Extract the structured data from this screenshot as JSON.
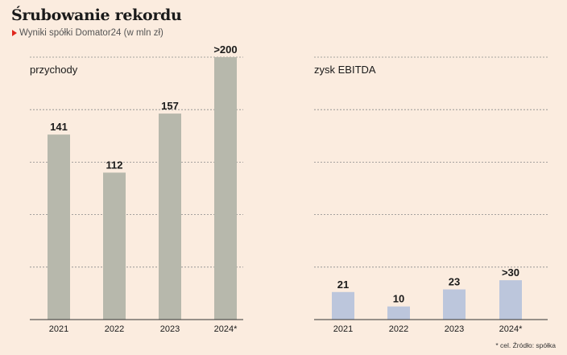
{
  "header": {
    "title": "Śrubowanie rekordu",
    "subtitle": "Wyniki spółki Domator24 (w mln zł)"
  },
  "footnote": "* cel. Źródło: spółka",
  "colors": {
    "background": "#fbecdf",
    "revenue_bar": "#b7b8ac",
    "ebitda_bar": "#bcc6dc",
    "accent": "#e0261c"
  },
  "chart_data": [
    {
      "type": "bar",
      "title": "przychody",
      "categories": [
        "2021",
        "2022",
        "2023",
        "2024*"
      ],
      "values": [
        141,
        112,
        157,
        200
      ],
      "value_labels": [
        "141",
        "112",
        "157",
        ">200"
      ],
      "ylim": [
        0,
        200
      ],
      "grid": true
    },
    {
      "type": "bar",
      "title": "zysk EBITDA",
      "categories": [
        "2021",
        "2022",
        "2023",
        "2024*"
      ],
      "values": [
        21,
        10,
        23,
        30
      ],
      "value_labels": [
        "21",
        "10",
        "23",
        ">30"
      ],
      "ylim": [
        0,
        200
      ],
      "grid": true
    }
  ]
}
